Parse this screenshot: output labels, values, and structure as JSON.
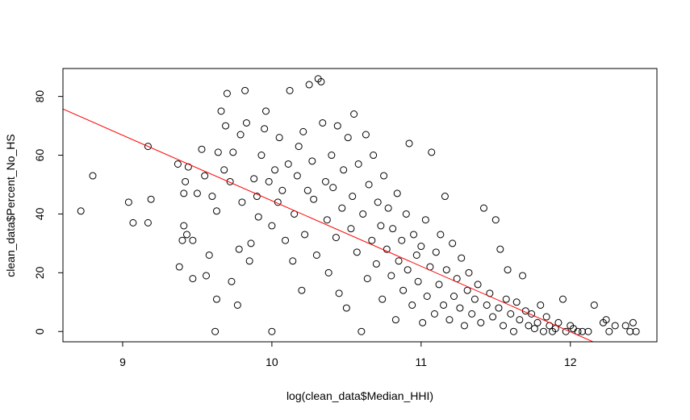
{
  "chart_data": {
    "type": "scatter",
    "title": "",
    "xlabel": "log(clean_data$Median_HHI)",
    "ylabel": "clean_data$Percent_No_HS",
    "xlim": [
      8.6,
      12.58
    ],
    "ylim": [
      -3.5,
      89.5
    ],
    "x_ticks": [
      9,
      10,
      11,
      12
    ],
    "y_ticks": [
      0,
      20,
      40,
      60,
      80
    ],
    "grid": false,
    "legend": "none",
    "colors": {
      "points": "#000000",
      "fit_line": "#ff0000",
      "frame": "#000000"
    },
    "fit_line": {
      "slope": -22.3,
      "intercept": 267.5
    },
    "points": [
      [
        8.72,
        41
      ],
      [
        8.8,
        53
      ],
      [
        9.04,
        44
      ],
      [
        9.07,
        37
      ],
      [
        9.17,
        37
      ],
      [
        9.17,
        63
      ],
      [
        9.19,
        45
      ],
      [
        9.37,
        57
      ],
      [
        9.38,
        22
      ],
      [
        9.4,
        31
      ],
      [
        9.41,
        36
      ],
      [
        9.41,
        47
      ],
      [
        9.42,
        51
      ],
      [
        9.43,
        33
      ],
      [
        9.44,
        56
      ],
      [
        9.47,
        31
      ],
      [
        9.47,
        18
      ],
      [
        9.5,
        47
      ],
      [
        9.53,
        62
      ],
      [
        9.55,
        53
      ],
      [
        9.56,
        19
      ],
      [
        9.58,
        26
      ],
      [
        9.6,
        46
      ],
      [
        9.62,
        0
      ],
      [
        9.63,
        11
      ],
      [
        9.63,
        41
      ],
      [
        9.64,
        61
      ],
      [
        9.66,
        75
      ],
      [
        9.68,
        55
      ],
      [
        9.69,
        70
      ],
      [
        9.7,
        81
      ],
      [
        9.72,
        51
      ],
      [
        9.73,
        17
      ],
      [
        9.74,
        61
      ],
      [
        9.77,
        9
      ],
      [
        9.78,
        28
      ],
      [
        9.79,
        67
      ],
      [
        9.8,
        44
      ],
      [
        9.82,
        82
      ],
      [
        9.83,
        71
      ],
      [
        9.85,
        24
      ],
      [
        9.86,
        30
      ],
      [
        9.88,
        52
      ],
      [
        9.9,
        46
      ],
      [
        9.91,
        39
      ],
      [
        9.93,
        60
      ],
      [
        9.95,
        69
      ],
      [
        9.96,
        75
      ],
      [
        9.98,
        51
      ],
      [
        10.0,
        0
      ],
      [
        10.0,
        36
      ],
      [
        10.02,
        55
      ],
      [
        10.04,
        44
      ],
      [
        10.05,
        66
      ],
      [
        10.07,
        48
      ],
      [
        10.09,
        31
      ],
      [
        10.11,
        57
      ],
      [
        10.12,
        82
      ],
      [
        10.14,
        24
      ],
      [
        10.15,
        40
      ],
      [
        10.17,
        53
      ],
      [
        10.18,
        63
      ],
      [
        10.2,
        14
      ],
      [
        10.21,
        68
      ],
      [
        10.22,
        33
      ],
      [
        10.24,
        48
      ],
      [
        10.25,
        84
      ],
      [
        10.27,
        58
      ],
      [
        10.28,
        45
      ],
      [
        10.3,
        26
      ],
      [
        10.31,
        86
      ],
      [
        10.33,
        85
      ],
      [
        10.34,
        71
      ],
      [
        10.36,
        51
      ],
      [
        10.37,
        38
      ],
      [
        10.38,
        20
      ],
      [
        10.4,
        60
      ],
      [
        10.41,
        49
      ],
      [
        10.43,
        32
      ],
      [
        10.44,
        70
      ],
      [
        10.45,
        13
      ],
      [
        10.47,
        42
      ],
      [
        10.48,
        55
      ],
      [
        10.5,
        8
      ],
      [
        10.51,
        66
      ],
      [
        10.53,
        35
      ],
      [
        10.54,
        46
      ],
      [
        10.55,
        74
      ],
      [
        10.57,
        27
      ],
      [
        10.58,
        57
      ],
      [
        10.6,
        0
      ],
      [
        10.61,
        40
      ],
      [
        10.63,
        67
      ],
      [
        10.64,
        18
      ],
      [
        10.65,
        50
      ],
      [
        10.67,
        31
      ],
      [
        10.68,
        60
      ],
      [
        10.7,
        23
      ],
      [
        10.71,
        44
      ],
      [
        10.73,
        36
      ],
      [
        10.74,
        11
      ],
      [
        10.75,
        53
      ],
      [
        10.77,
        28
      ],
      [
        10.78,
        42
      ],
      [
        10.8,
        19
      ],
      [
        10.81,
        35
      ],
      [
        10.83,
        4
      ],
      [
        10.84,
        47
      ],
      [
        10.85,
        24
      ],
      [
        10.87,
        31
      ],
      [
        10.88,
        14
      ],
      [
        10.9,
        40
      ],
      [
        10.91,
        21
      ],
      [
        10.92,
        64
      ],
      [
        10.94,
        9
      ],
      [
        10.95,
        33
      ],
      [
        10.97,
        26
      ],
      [
        10.98,
        17
      ],
      [
        11.0,
        29
      ],
      [
        11.01,
        3
      ],
      [
        11.03,
        38
      ],
      [
        11.04,
        12
      ],
      [
        11.06,
        22
      ],
      [
        11.07,
        61
      ],
      [
        11.09,
        6
      ],
      [
        11.1,
        27
      ],
      [
        11.12,
        16
      ],
      [
        11.13,
        33
      ],
      [
        11.15,
        9
      ],
      [
        11.16,
        46
      ],
      [
        11.17,
        21
      ],
      [
        11.19,
        4
      ],
      [
        11.21,
        30
      ],
      [
        11.22,
        12
      ],
      [
        11.24,
        18
      ],
      [
        11.26,
        8
      ],
      [
        11.27,
        25
      ],
      [
        11.29,
        2
      ],
      [
        11.31,
        14
      ],
      [
        11.32,
        20
      ],
      [
        11.34,
        6
      ],
      [
        11.36,
        11
      ],
      [
        11.38,
        16
      ],
      [
        11.4,
        3
      ],
      [
        11.42,
        42
      ],
      [
        11.44,
        9
      ],
      [
        11.46,
        13
      ],
      [
        11.48,
        5
      ],
      [
        11.5,
        38
      ],
      [
        11.52,
        8
      ],
      [
        11.53,
        28
      ],
      [
        11.55,
        2
      ],
      [
        11.57,
        11
      ],
      [
        11.58,
        21
      ],
      [
        11.6,
        6
      ],
      [
        11.62,
        0
      ],
      [
        11.64,
        10
      ],
      [
        11.66,
        4
      ],
      [
        11.68,
        19
      ],
      [
        11.7,
        7
      ],
      [
        11.72,
        2
      ],
      [
        11.74,
        6
      ],
      [
        11.76,
        1
      ],
      [
        11.78,
        3
      ],
      [
        11.8,
        9
      ],
      [
        11.82,
        0
      ],
      [
        11.84,
        5
      ],
      [
        11.86,
        2
      ],
      [
        11.88,
        0
      ],
      [
        11.9,
        1
      ],
      [
        11.92,
        3
      ],
      [
        11.95,
        11
      ],
      [
        11.97,
        0
      ],
      [
        12.0,
        2
      ],
      [
        12.02,
        1
      ],
      [
        12.05,
        0
      ],
      [
        12.08,
        0
      ],
      [
        12.12,
        0
      ],
      [
        12.16,
        9
      ],
      [
        12.22,
        3
      ],
      [
        12.24,
        4
      ],
      [
        12.26,
        0
      ],
      [
        12.3,
        2
      ],
      [
        12.37,
        2
      ],
      [
        12.4,
        0
      ],
      [
        12.42,
        3
      ],
      [
        12.44,
        0
      ]
    ]
  }
}
